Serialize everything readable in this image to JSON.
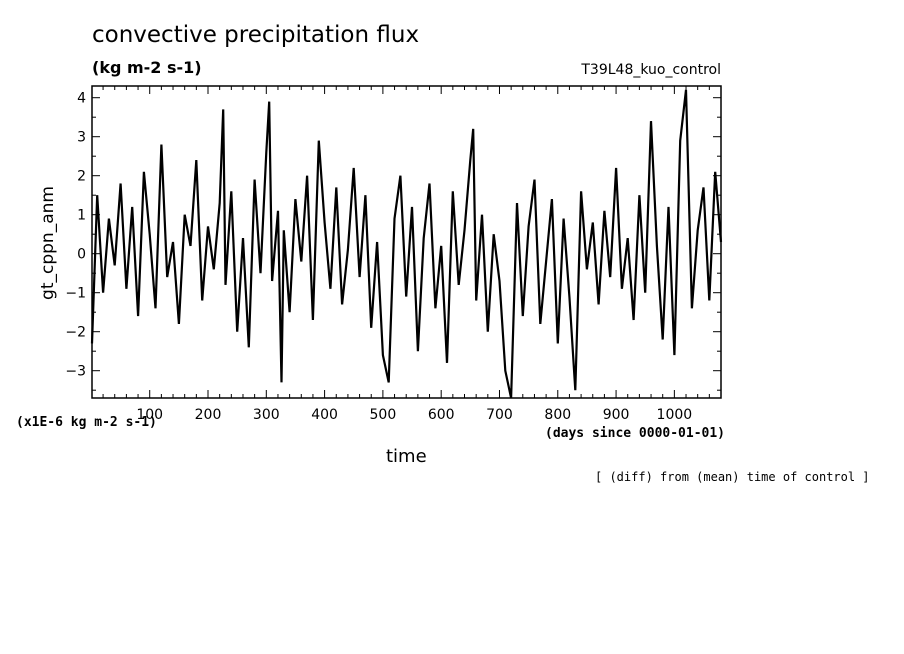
{
  "title": "convective precipitation flux",
  "units": "(kg m-2 s-1)",
  "run_name": "T39L48_kuo_control",
  "ylabel": "gt_cppn_anm",
  "xlabel": "time",
  "y_scale_note": "(x1E-6 kg m-2 s-1)",
  "x_units_note": "(days since 0000-01-01)",
  "footnote": "[ (diff) from (mean) time of control ]",
  "chart_data": {
    "type": "line",
    "title": "convective precipitation flux",
    "xlabel": "time",
    "ylabel": "gt_cppn_anm",
    "xlim": [
      1,
      1080
    ],
    "ylim": [
      -3.7,
      4.3
    ],
    "xticks": [
      100,
      200,
      300,
      400,
      500,
      600,
      700,
      800,
      900,
      1000
    ],
    "yticks": [
      -3,
      -2,
      -1,
      0,
      1,
      2,
      3,
      4
    ],
    "grid": false,
    "x": [
      1,
      10,
      20,
      30,
      40,
      50,
      60,
      70,
      80,
      90,
      100,
      110,
      120,
      130,
      140,
      150,
      160,
      170,
      180,
      190,
      200,
      210,
      220,
      226,
      230,
      240,
      250,
      260,
      270,
      280,
      290,
      300,
      305,
      310,
      320,
      326,
      330,
      340,
      350,
      360,
      370,
      380,
      390,
      400,
      410,
      420,
      430,
      440,
      450,
      460,
      470,
      480,
      490,
      500,
      510,
      520,
      530,
      540,
      550,
      560,
      570,
      580,
      590,
      600,
      610,
      620,
      630,
      640,
      650,
      655,
      660,
      670,
      680,
      690,
      700,
      710,
      720,
      730,
      740,
      750,
      760,
      770,
      780,
      790,
      800,
      810,
      820,
      830,
      840,
      850,
      860,
      870,
      880,
      890,
      900,
      910,
      920,
      930,
      940,
      950,
      960,
      970,
      980,
      990,
      1000,
      1010,
      1020,
      1030,
      1040,
      1050,
      1060,
      1070,
      1080
    ],
    "y": [
      -2.3,
      1.5,
      -1.0,
      0.9,
      -0.3,
      1.8,
      -0.9,
      1.2,
      -1.6,
      2.1,
      0.5,
      -1.4,
      2.8,
      -0.6,
      0.3,
      -1.8,
      1.0,
      0.2,
      2.4,
      -1.2,
      0.7,
      -0.4,
      1.3,
      3.7,
      -0.8,
      1.6,
      -2.0,
      0.4,
      -2.4,
      1.9,
      -0.5,
      2.6,
      3.9,
      -0.7,
      1.1,
      -3.3,
      0.6,
      -1.5,
      1.4,
      -0.2,
      2.0,
      -1.7,
      2.9,
      0.8,
      -0.9,
      1.7,
      -1.3,
      0.1,
      2.2,
      -0.6,
      1.5,
      -1.9,
      0.3,
      -2.6,
      -3.3,
      0.9,
      2.0,
      -1.1,
      1.2,
      -2.5,
      0.4,
      1.8,
      -1.4,
      0.2,
      -2.8,
      1.6,
      -0.8,
      0.6,
      2.4,
      3.2,
      -1.2,
      1.0,
      -2.0,
      0.5,
      -0.7,
      -3.0,
      -3.7,
      1.3,
      -1.6,
      0.7,
      1.9,
      -1.8,
      -0.2,
      1.4,
      -2.3,
      0.9,
      -1.1,
      -3.5,
      1.6,
      -0.4,
      0.8,
      -1.3,
      1.1,
      -0.6,
      2.2,
      -0.9,
      0.4,
      -1.7,
      1.5,
      -1.0,
      3.4,
      0.2,
      -2.2,
      1.2,
      -2.6,
      2.9,
      4.2,
      -1.4,
      0.6,
      1.7,
      -1.2,
      2.1,
      0.3
    ]
  }
}
